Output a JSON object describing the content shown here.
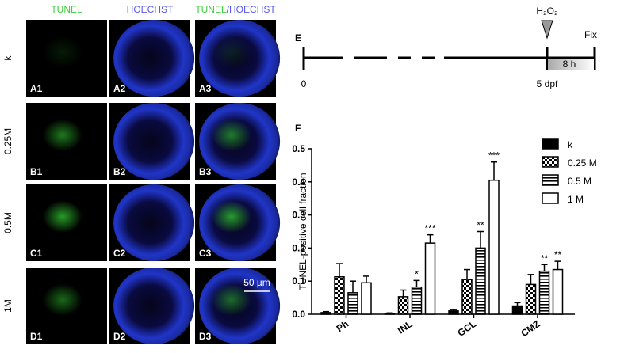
{
  "images": {
    "headers": [
      "TUNEL",
      "HOECHST"
    ],
    "merged_header": [
      "TUNEL",
      "/HOECHST"
    ],
    "rows": [
      "k",
      "0.25M",
      "0.5M",
      "1M"
    ],
    "labels": [
      [
        "A1",
        "A2",
        "A3"
      ],
      [
        "B1",
        "B2",
        "B3"
      ],
      [
        "C1",
        "C2",
        "C3"
      ],
      [
        "D1",
        "D2",
        "D3"
      ]
    ],
    "scale_bar": "50 µm"
  },
  "timeline": {
    "panel": "E",
    "treatment": "H₂O₂",
    "fix": "Fix",
    "duration": "8 h",
    "start": "0",
    "mark": "5 dpf"
  },
  "chart_data": {
    "type": "bar",
    "panel": "F",
    "ylabel": "TUNEL-positive cell fraction",
    "categories": [
      "Ph",
      "INL",
      "GCL",
      "CMZ"
    ],
    "ylim": [
      0,
      0.5
    ],
    "yticks": [
      {
        "value": 0,
        "label": "0.0"
      },
      0.1,
      0.2,
      0.3,
      0.4,
      0.5
    ],
    "series": [
      {
        "name": "k",
        "color": "#000000",
        "pattern": "solid",
        "values": [
          0.005,
          0.002,
          0.01,
          0.025
        ],
        "errors": [
          0.003,
          0.002,
          0.004,
          0.01
        ],
        "annotations": [
          null,
          null,
          null,
          null
        ]
      },
      {
        "name": "0.25 M",
        "color": "#000000",
        "pattern": "checker",
        "values": [
          0.113,
          0.053,
          0.105,
          0.09
        ],
        "errors": [
          0.04,
          0.02,
          0.03,
          0.03
        ],
        "annotations": [
          null,
          null,
          null,
          null
        ]
      },
      {
        "name": "0.5 M",
        "color": "#000000",
        "pattern": "hstripe",
        "values": [
          0.065,
          0.082,
          0.2,
          0.13
        ],
        "errors": [
          0.035,
          0.02,
          0.05,
          0.02
        ],
        "annotations": [
          null,
          "*",
          "**",
          "**"
        ]
      },
      {
        "name": "1 M",
        "color": "#000000",
        "pattern": "none",
        "values": [
          0.095,
          0.215,
          0.405,
          0.135
        ],
        "errors": [
          0.02,
          0.025,
          0.055,
          0.025
        ],
        "annotations": [
          null,
          "***",
          "***",
          "**"
        ]
      }
    ]
  }
}
